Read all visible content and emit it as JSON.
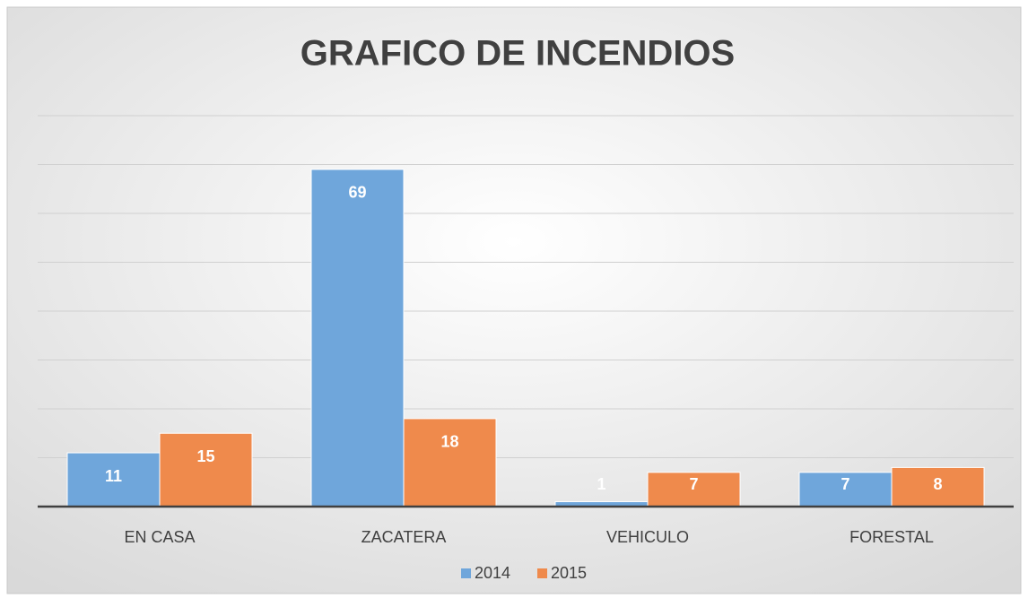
{
  "chart_data": {
    "type": "bar",
    "title": "GRAFICO DE INCENDIOS",
    "categories": [
      "EN CASA",
      "ZACATERA",
      "VEHICULO",
      "FORESTAL"
    ],
    "series": [
      {
        "name": "2014",
        "color": "#6fa6db",
        "values": [
          11,
          69,
          1,
          7
        ]
      },
      {
        "name": "2015",
        "color": "#ef8a4c",
        "values": [
          15,
          18,
          7,
          8
        ]
      }
    ],
    "ylim": [
      0,
      80
    ],
    "yticks": [
      0,
      10,
      20,
      30,
      40,
      50,
      60,
      70,
      80
    ],
    "grid": true,
    "legend": "bottom"
  }
}
